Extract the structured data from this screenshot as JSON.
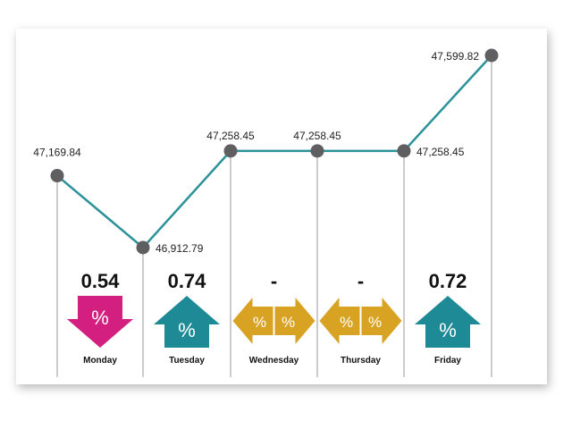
{
  "chart_data": {
    "type": "line",
    "points": [
      {
        "label": "47,169.84",
        "value": 47169.84
      },
      {
        "label": "46,912.79",
        "value": 46912.79
      },
      {
        "label": "47,258.45",
        "value": 47258.45
      },
      {
        "label": "47,258.45",
        "value": 47258.45
      },
      {
        "label": "47,258.45",
        "value": 47258.45
      },
      {
        "label": "47,599.82",
        "value": 47599.82
      }
    ],
    "days": [
      {
        "name": "Monday",
        "change": "0.54",
        "direction": "down",
        "color": "#d31f7f"
      },
      {
        "name": "Tuesday",
        "change": "0.74",
        "direction": "up",
        "color": "#1e8a96"
      },
      {
        "name": "Wednesday",
        "change": "-",
        "direction": "flat",
        "color": "#d8a322"
      },
      {
        "name": "Thursday",
        "change": "-",
        "direction": "flat",
        "color": "#d8a322"
      },
      {
        "name": "Friday",
        "change": "0.72",
        "direction": "up",
        "color": "#1e8a96"
      }
    ],
    "symbol": "%",
    "ylim": [
      46850,
      47650
    ],
    "colors": {
      "line": "#2a9298",
      "marker": "#5f5f61",
      "grid": "#9a9a9a"
    }
  }
}
